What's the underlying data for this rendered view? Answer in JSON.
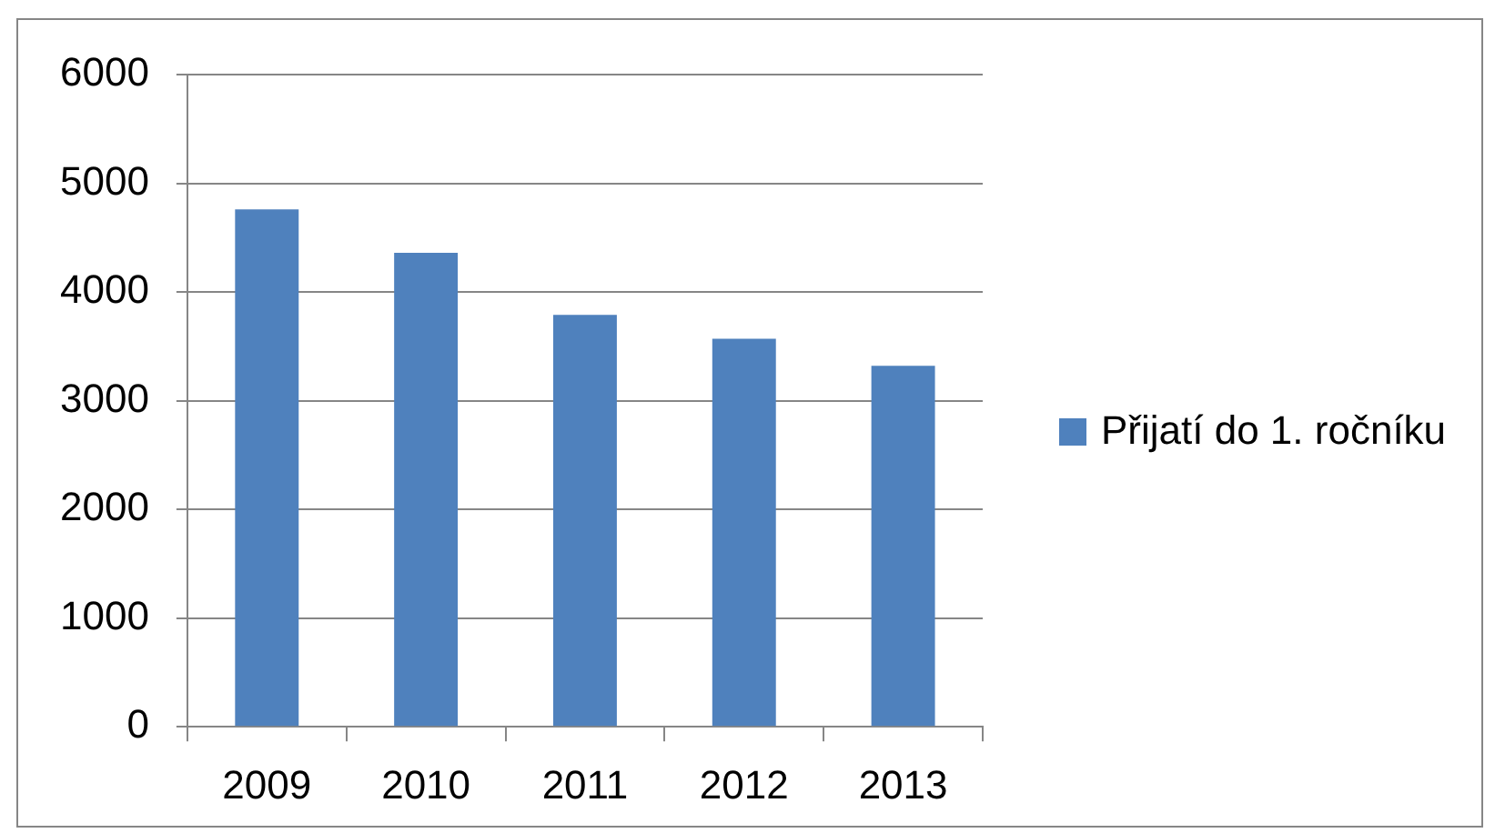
{
  "chart_data": {
    "type": "bar",
    "categories": [
      "2009",
      "2010",
      "2011",
      "2012",
      "2013"
    ],
    "series": [
      {
        "name": "Přijatí do 1. ročníku",
        "color": "#4f81bd",
        "values": [
          4760,
          4360,
          3790,
          3570,
          3320
        ]
      }
    ],
    "ylim": [
      0,
      6000
    ],
    "yticks": [
      0,
      1000,
      2000,
      3000,
      4000,
      5000,
      6000
    ],
    "grid": "y",
    "legend": "right"
  }
}
